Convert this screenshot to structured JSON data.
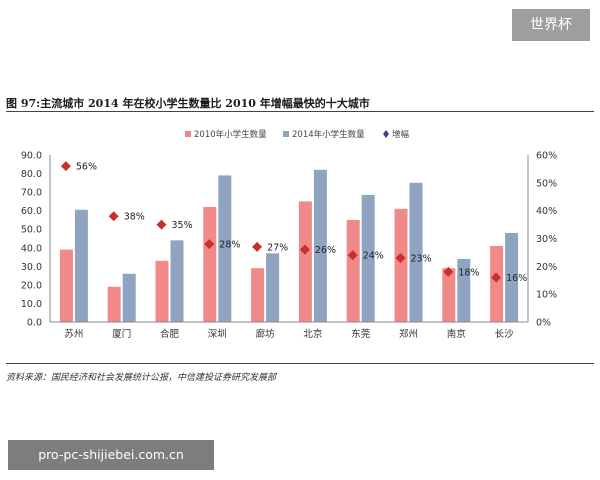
{
  "watermark_top": "世界杯",
  "watermark_bottom": "pro-pc-shijiebei.com.cn",
  "source_note": "资料来源：国民经济和社会发展统计公报，中信建投证券研究发展部",
  "colors": {
    "series_2010": "#f08a8a",
    "series_2014": "#8ea4c0",
    "growth_marker": "#c9302c"
  },
  "chart_data": {
    "type": "bar",
    "title": "图 97:主流城市 2014 年在校小学生数量比 2010 年增幅最快的十大城市",
    "categories": [
      "苏州",
      "厦门",
      "合肥",
      "深圳",
      "廊坊",
      "北京",
      "东莞",
      "郑州",
      "南京",
      "长沙"
    ],
    "series": [
      {
        "name": "2010年小学生数量",
        "axis": "left",
        "values": [
          39,
          19,
          33,
          62,
          29,
          65,
          55,
          61,
          29,
          41
        ]
      },
      {
        "name": "2014年小学生数量",
        "axis": "left",
        "values": [
          60.5,
          26,
          44,
          79,
          37,
          82,
          68.5,
          75,
          34,
          48
        ]
      },
      {
        "name": "增幅",
        "axis": "right",
        "type": "scatter",
        "values": [
          56,
          38,
          35,
          28,
          27,
          26,
          24,
          23,
          18,
          16
        ],
        "labels": [
          "56%",
          "38%",
          "35%",
          "28%",
          "27%",
          "26%",
          "24%",
          "23%",
          "18%",
          "16%"
        ]
      }
    ],
    "ylim": [
      0,
      90
    ],
    "yticks": [
      "0.0",
      "10.0",
      "20.0",
      "30.0",
      "40.0",
      "50.0",
      "60.0",
      "70.0",
      "80.0",
      "90.0"
    ],
    "y2lim": [
      0,
      60
    ],
    "y2ticks": [
      "0%",
      "10%",
      "20%",
      "30%",
      "40%",
      "50%",
      "60%"
    ],
    "legend": [
      "2010年小学生数量",
      "2014年小学生数量",
      "增幅"
    ],
    "legend_position": "top-center",
    "grid": false
  }
}
